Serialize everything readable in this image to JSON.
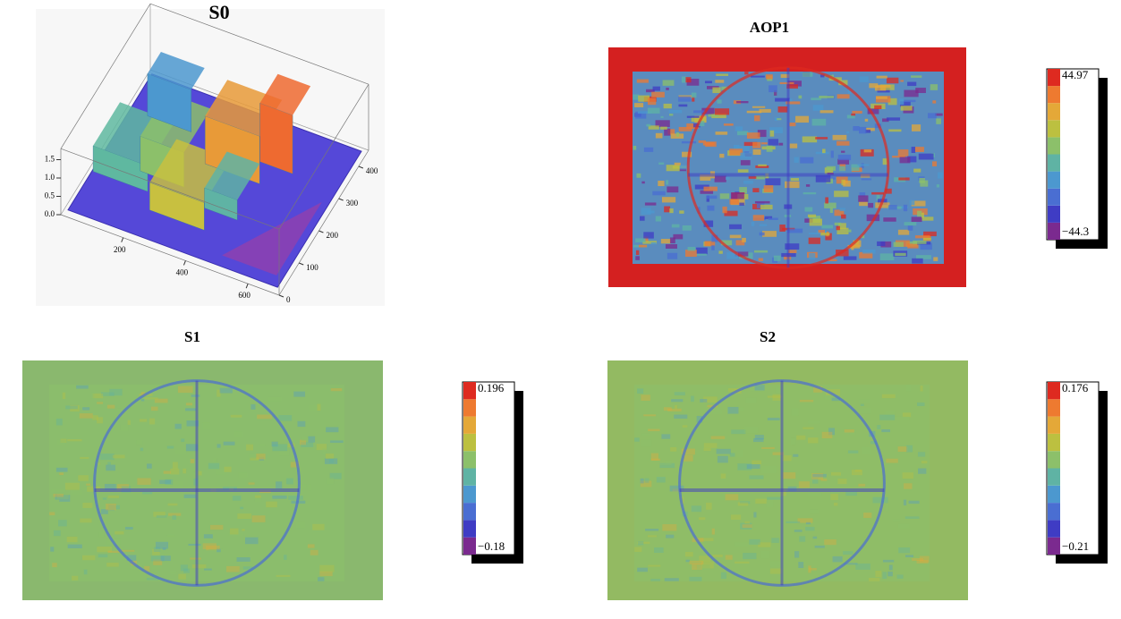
{
  "chart_data": [
    {
      "type": "surface",
      "title": "S0",
      "xlim": [
        0,
        700
      ],
      "xticks": [
        200,
        400,
        600
      ],
      "ylim": [
        0,
        450
      ],
      "yticks": [
        0,
        100,
        200,
        300,
        400
      ],
      "zlim": [
        0,
        1.8
      ],
      "zticks": [
        {
          "value": 0,
          "label": "0.0"
        },
        {
          "value": 0.5,
          "label": "0.5"
        },
        {
          "value": 1,
          "label": "1.0"
        },
        {
          "value": 1.5,
          "label": "1.5"
        }
      ]
    },
    {
      "type": "heatmap",
      "title": "AOP1",
      "background": "#d42020",
      "clim": [
        -44.3,
        44.97
      ],
      "cticks": [
        44.97,
        {
          "value": -44.3,
          "label": "−44.3"
        }
      ],
      "colors": [
        "#7b2a8f",
        "#3f3cc4",
        "#4a6ed2",
        "#4c98cf",
        "#5fb3a4",
        "#8cc06a",
        "#bcc040",
        "#e4a838",
        "#ee7a30",
        "#de2a20"
      ]
    },
    {
      "type": "heatmap",
      "title": "S1",
      "background": "#8ab86e",
      "clim": [
        -0.18,
        0.196
      ],
      "cticks": [
        0.196,
        {
          "value": -0.18,
          "label": "−0.18"
        }
      ],
      "colors": [
        "#7b2a8f",
        "#3f3cc4",
        "#4a6ed2",
        "#4c98cf",
        "#5fb3a4",
        "#8cc06a",
        "#bcc040",
        "#e4a838",
        "#ee7a30",
        "#de2a20"
      ]
    },
    {
      "type": "heatmap",
      "title": "S2",
      "background": "#93ba62",
      "clim": [
        -0.21,
        0.176
      ],
      "cticks": [
        0.176,
        {
          "value": -0.21,
          "label": "−0.21"
        }
      ],
      "colors": [
        "#7b2a8f",
        "#3f3cc4",
        "#4a6ed2",
        "#4c98cf",
        "#5fb3a4",
        "#8cc06a",
        "#bcc040",
        "#e4a838",
        "#ee7a30",
        "#de2a20"
      ]
    }
  ]
}
